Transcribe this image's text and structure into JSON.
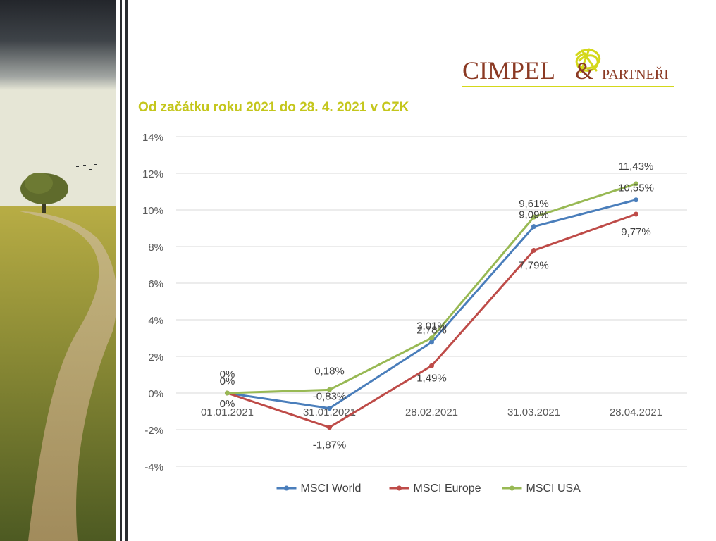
{
  "logo": {
    "name": "CIMPEL",
    "ampersand": "&",
    "suffix": "PARTNEŘI"
  },
  "colors": {
    "title": "#c4c61c",
    "logo_text": "#8b3a24",
    "logo_accent": "#d4d81a",
    "msci_world": "#4a7ebb",
    "msci_europe": "#be4b48",
    "msci_usa": "#98b954"
  },
  "chart_data": {
    "type": "line",
    "title": "Od začátku roku 2021 do 28. 4. 2021 v CZK",
    "categories": [
      "01.01.2021",
      "31.01.2021",
      "28.02.2021",
      "31.03.2021",
      "28.04.2021"
    ],
    "yticks": [
      "-4%",
      "-2%",
      "0%",
      "2%",
      "4%",
      "6%",
      "8%",
      "10%",
      "12%",
      "14%"
    ],
    "ylim": [
      -4,
      14
    ],
    "grid": true,
    "legend": "bottom",
    "series": [
      {
        "name": "MSCI World",
        "values": [
          0,
          -0.83,
          2.78,
          9.09,
          10.55
        ],
        "labels": [
          "0%",
          "-0,83%",
          "2,78%",
          "9,09%",
          "10,55%"
        ],
        "color": "#4a7ebb"
      },
      {
        "name": "MSCI Europe",
        "values": [
          0,
          -1.87,
          1.49,
          7.79,
          9.77
        ],
        "labels": [
          "0%",
          "-1,87%",
          "1,49%",
          "7,79%",
          "9,77%"
        ],
        "color": "#be4b48"
      },
      {
        "name": "MSCI USA",
        "values": [
          0,
          0.18,
          3.01,
          9.61,
          11.43
        ],
        "labels": [
          "0%",
          "0,18%",
          "3,01%",
          "9,61%",
          "11,43%"
        ],
        "color": "#98b954"
      }
    ]
  }
}
